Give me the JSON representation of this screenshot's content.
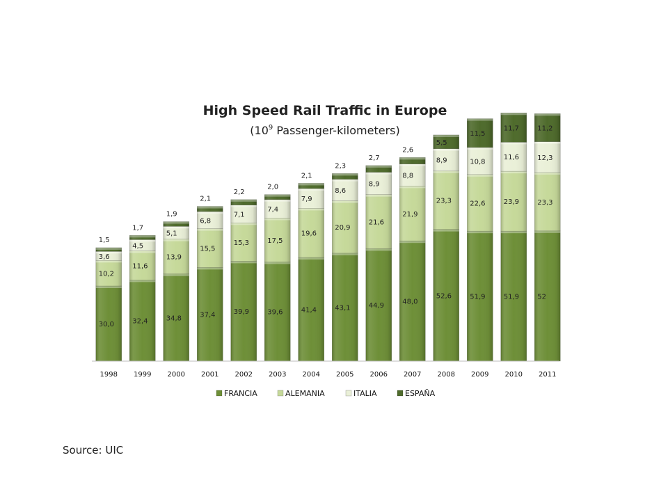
{
  "chart_data": {
    "type": "bar",
    "stacked": true,
    "title": "High Speed Rail Traffic in Europe",
    "subtitle": {
      "prefix": "(10",
      "sup": "9",
      "suffix": " Passenger-kilometers)"
    },
    "categories": [
      "1998",
      "1999",
      "2000",
      "2001",
      "2002",
      "2003",
      "2004",
      "2005",
      "2006",
      "2007",
      "2008",
      "2009",
      "2010",
      "2011"
    ],
    "series": [
      {
        "name": "FRANCIA",
        "color": "#6e8f38",
        "values": [
          30.0,
          32.4,
          34.8,
          37.4,
          39.9,
          39.6,
          41.4,
          43.1,
          44.9,
          48.0,
          52.6,
          51.9,
          51.9,
          52
        ],
        "labels": [
          "30,0",
          "32,4",
          "34,8",
          "37,4",
          "39,9",
          "39,6",
          "41,4",
          "43,1",
          "44,9",
          "48,0",
          "52,6",
          "51,9",
          "51,9",
          "52"
        ]
      },
      {
        "name": "ALEMANIA",
        "color": "#c6d99a",
        "values": [
          10.2,
          11.6,
          13.9,
          15.5,
          15.3,
          17.5,
          19.6,
          20.9,
          21.6,
          21.9,
          23.3,
          22.6,
          23.9,
          23.3
        ],
        "labels": [
          "10,2",
          "11,6",
          "13,9",
          "15,5",
          "15,3",
          "17,5",
          "19,6",
          "20,9",
          "21,6",
          "21,9",
          "23,3",
          "22,6",
          "23,9",
          "23,3"
        ]
      },
      {
        "name": "ITALIA",
        "color": "#eaf0d8",
        "values": [
          3.6,
          4.5,
          5.1,
          6.8,
          7.1,
          7.4,
          7.9,
          8.6,
          8.9,
          8.8,
          8.9,
          10.8,
          11.6,
          12.3
        ],
        "labels": [
          "3,6",
          "4,5",
          "5,1",
          "6,8",
          "7,1",
          "7,4",
          "7,9",
          "8,6",
          "8,9",
          "8,8",
          "8,9",
          "10,8",
          "11,6",
          "12,3"
        ]
      },
      {
        "name": "ESPAÑA",
        "color": "#4f6b2c",
        "values": [
          1.5,
          1.7,
          1.9,
          2.1,
          2.2,
          2.0,
          2.1,
          2.3,
          2.7,
          2.6,
          5.5,
          11.5,
          11.7,
          11.2
        ],
        "labels": [
          "1,5",
          "1,7",
          "1,9",
          "2,1",
          "2,2",
          "2,0",
          "2,1",
          "2,3",
          "2,7",
          "2,6",
          "5,5",
          "11,5",
          "11,7",
          "11,2"
        ]
      }
    ],
    "ylim": [
      0,
      100
    ],
    "legend_position": "bottom",
    "grid": false
  },
  "source_text": "Source: UIC"
}
